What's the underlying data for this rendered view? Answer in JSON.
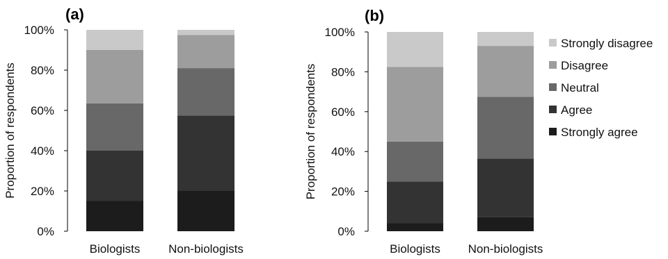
{
  "chart_data": [
    {
      "type": "bar",
      "stacked": true,
      "panel_label": "(a)",
      "ylabel": "Proportion of respondents",
      "ylim": [
        0,
        100
      ],
      "yticks": [
        "0%",
        "20%",
        "40%",
        "60%",
        "80%",
        "100%"
      ],
      "categories": [
        "Biologists",
        "Non-biologists"
      ],
      "series": [
        {
          "name": "Strongly agree",
          "color": "#1c1c1c",
          "values": [
            15,
            20
          ]
        },
        {
          "name": "Agree",
          "color": "#333333",
          "values": [
            25,
            37.5
          ]
        },
        {
          "name": "Neutral",
          "color": "#686868",
          "values": [
            23.5,
            23.5
          ]
        },
        {
          "name": "Disagree",
          "color": "#9d9d9d",
          "values": [
            26.5,
            16.5
          ]
        },
        {
          "name": "Strongly disagree",
          "color": "#c9c9c9",
          "values": [
            10,
            2.5
          ]
        }
      ]
    },
    {
      "type": "bar",
      "stacked": true,
      "panel_label": "(b)",
      "ylabel": "Proportion of respondents",
      "ylim": [
        0,
        100
      ],
      "yticks": [
        "0%",
        "20%",
        "40%",
        "60%",
        "80%",
        "100%"
      ],
      "categories": [
        "Biologists",
        "Non-biologists"
      ],
      "legend_position": "right",
      "series": [
        {
          "name": "Strongly agree",
          "color": "#1c1c1c",
          "values": [
            4,
            7
          ]
        },
        {
          "name": "Agree",
          "color": "#333333",
          "values": [
            21,
            29.5
          ]
        },
        {
          "name": "Neutral",
          "color": "#686868",
          "values": [
            20,
            31
          ]
        },
        {
          "name": "Disagree",
          "color": "#9d9d9d",
          "values": [
            37.5,
            25.5
          ]
        },
        {
          "name": "Strongly disagree",
          "color": "#c9c9c9",
          "values": [
            17.5,
            7
          ]
        }
      ]
    }
  ]
}
